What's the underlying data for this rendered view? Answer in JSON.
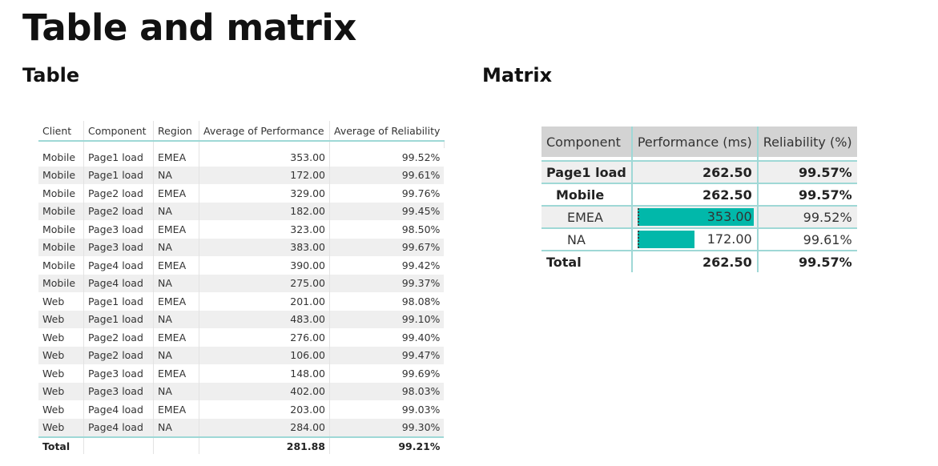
{
  "page": {
    "title": "Table and matrix",
    "table_section_title": "Table",
    "matrix_section_title": "Matrix"
  },
  "table": {
    "columns": [
      "Client",
      "Component",
      "Region",
      "Average of Performance",
      "Average of Reliability"
    ],
    "rows": [
      [
        "Mobile",
        "Page1 load",
        "EMEA",
        "353.00",
        "99.52%"
      ],
      [
        "Mobile",
        "Page1 load",
        "NA",
        "172.00",
        "99.61%"
      ],
      [
        "Mobile",
        "Page2 load",
        "EMEA",
        "329.00",
        "99.76%"
      ],
      [
        "Mobile",
        "Page2 load",
        "NA",
        "182.00",
        "99.45%"
      ],
      [
        "Mobile",
        "Page3 load",
        "EMEA",
        "323.00",
        "98.50%"
      ],
      [
        "Mobile",
        "Page3 load",
        "NA",
        "383.00",
        "99.67%"
      ],
      [
        "Mobile",
        "Page4 load",
        "EMEA",
        "390.00",
        "99.42%"
      ],
      [
        "Mobile",
        "Page4 load",
        "NA",
        "275.00",
        "99.37%"
      ],
      [
        "Web",
        "Page1 load",
        "EMEA",
        "201.00",
        "98.08%"
      ],
      [
        "Web",
        "Page1 load",
        "NA",
        "483.00",
        "99.10%"
      ],
      [
        "Web",
        "Page2 load",
        "EMEA",
        "276.00",
        "99.40%"
      ],
      [
        "Web",
        "Page2 load",
        "NA",
        "106.00",
        "99.47%"
      ],
      [
        "Web",
        "Page3 load",
        "EMEA",
        "148.00",
        "99.69%"
      ],
      [
        "Web",
        "Page3 load",
        "NA",
        "402.00",
        "98.03%"
      ],
      [
        "Web",
        "Page4 load",
        "EMEA",
        "203.00",
        "99.03%"
      ],
      [
        "Web",
        "Page4 load",
        "NA",
        "284.00",
        "99.30%"
      ]
    ],
    "total": {
      "label": "Total",
      "performance": "281.88",
      "reliability": "99.21%"
    }
  },
  "matrix": {
    "columns": [
      "Component",
      "Performance (ms)",
      "Reliability (%)"
    ],
    "rows": [
      {
        "label": "Page1 load",
        "level": 0,
        "performance": "262.50",
        "reliability": "99.57%",
        "bold": true
      },
      {
        "label": "Mobile",
        "level": 1,
        "performance": "262.50",
        "reliability": "99.57%",
        "bold": true
      },
      {
        "label": "EMEA",
        "level": 2,
        "performance": "353.00",
        "reliability": "99.52%",
        "bold": false,
        "bar_fraction": 1.0
      },
      {
        "label": "NA",
        "level": 2,
        "performance": "172.00",
        "reliability": "99.61%",
        "bold": false,
        "bar_fraction": 0.487
      }
    ],
    "total": {
      "label": "Total",
      "performance": "262.50",
      "reliability": "99.57%"
    },
    "bar_color": "#01b8aa",
    "header_bg": "#d3d3d3",
    "grid_color": "#9fd8d6"
  }
}
